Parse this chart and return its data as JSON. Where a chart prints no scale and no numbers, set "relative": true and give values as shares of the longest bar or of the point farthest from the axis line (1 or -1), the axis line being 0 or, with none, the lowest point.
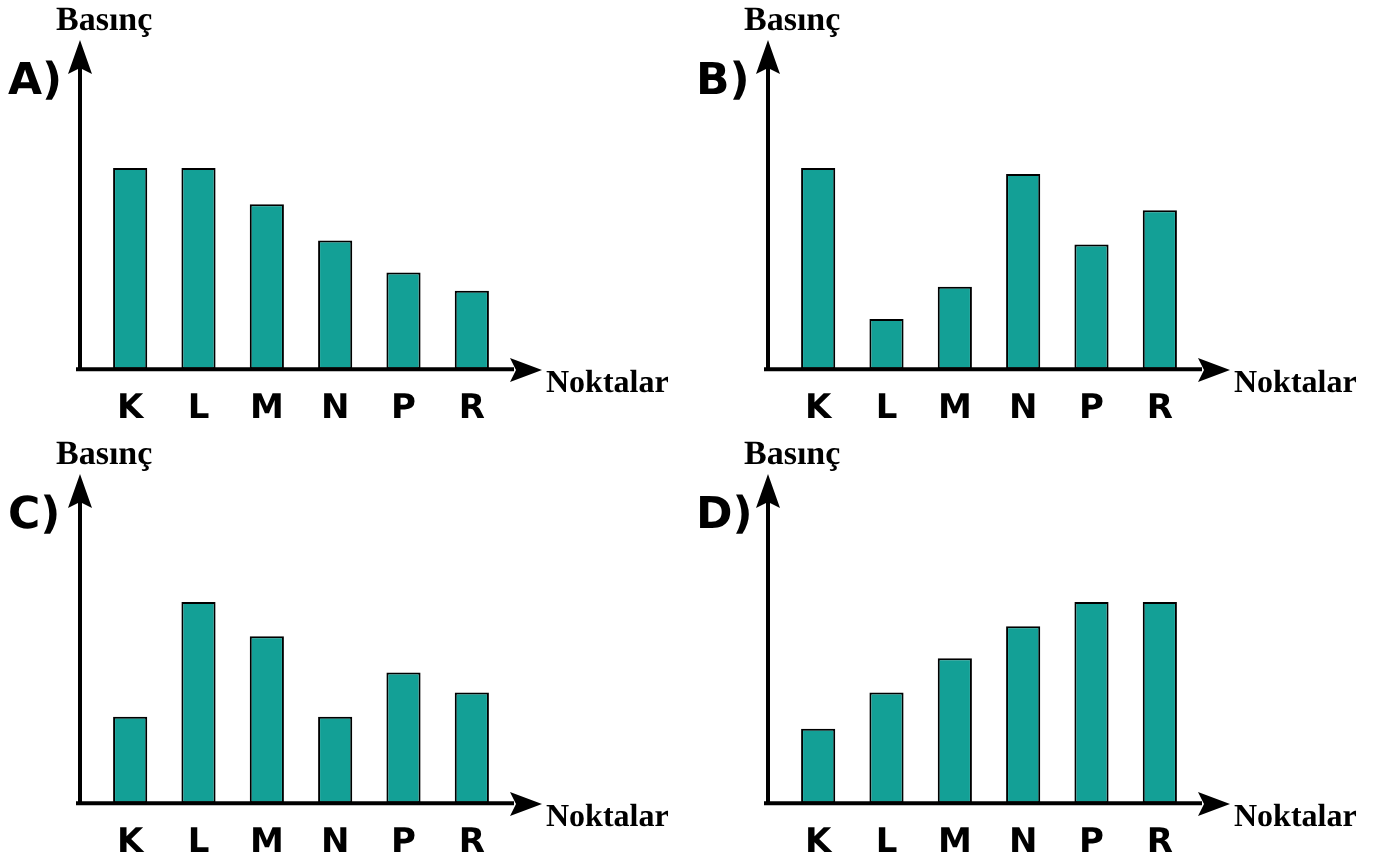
{
  "chart_data": [
    {
      "type": "bar",
      "title": "A)",
      "ylabel": "Basınç",
      "xlabel": "Noktalar",
      "relative": true,
      "color": "#13a096",
      "categories": [
        "K",
        "L",
        "M",
        "N",
        "P",
        "R"
      ],
      "values": [
        1,
        1,
        0.82,
        0.64,
        0.48,
        0.39
      ]
    },
    {
      "type": "bar",
      "title": "B)",
      "ylabel": "Basınç",
      "xlabel": "Noktalar",
      "relative": true,
      "color": "#13a096",
      "categories": [
        "K",
        "L",
        "M",
        "N",
        "P",
        "R"
      ],
      "values": [
        1,
        0.25,
        0.41,
        0.97,
        0.62,
        0.79
      ]
    },
    {
      "type": "bar",
      "title": "C)",
      "ylabel": "Basınç",
      "xlabel": "Noktalar",
      "relative": true,
      "color": "#13a096",
      "categories": [
        "K",
        "L",
        "M",
        "N",
        "P",
        "R"
      ],
      "values": [
        0.43,
        1,
        0.83,
        0.43,
        0.65,
        0.55
      ]
    },
    {
      "type": "bar",
      "title": "D)",
      "ylabel": "Basınç",
      "xlabel": "Noktalar",
      "relative": true,
      "color": "#13a096",
      "categories": [
        "K",
        "L",
        "M",
        "N",
        "P",
        "R"
      ],
      "values": [
        0.37,
        0.55,
        0.72,
        0.88,
        1,
        1
      ]
    }
  ]
}
